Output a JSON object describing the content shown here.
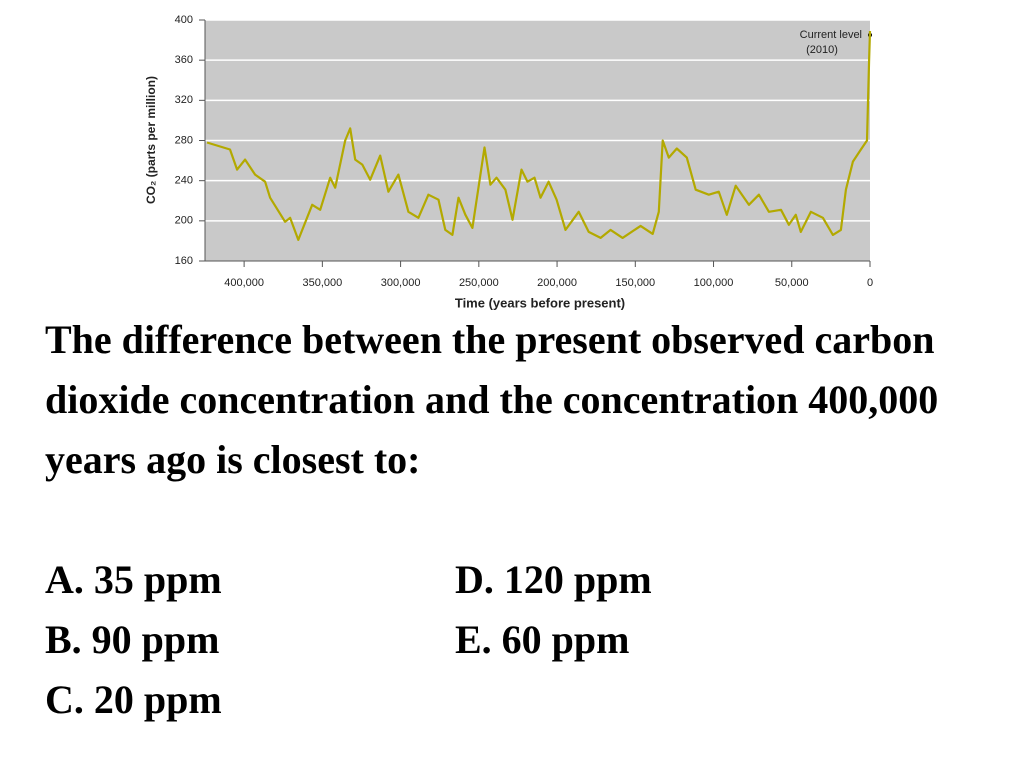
{
  "chart_data": {
    "type": "line",
    "y_label": "CO₂ (parts per million)",
    "x_label": "Time (years before present)",
    "annotation": [
      "Current level",
      "(2010)"
    ],
    "x": [
      423700,
      409000,
      404500,
      399400,
      393000,
      386600,
      383400,
      373800,
      370600,
      365400,
      356500,
      351400,
      345000,
      341800,
      335400,
      332200,
      329000,
      324500,
      319400,
      313000,
      307800,
      301400,
      295000,
      288600,
      282200,
      275800,
      271400,
      266900,
      263000,
      258600,
      254100,
      246400,
      242600,
      238700,
      233000,
      228500,
      222700,
      218900,
      214400,
      210600,
      205400,
      200300,
      194600,
      186200,
      179800,
      172200,
      165800,
      158100,
      146600,
      138900,
      135000,
      132500,
      128600,
      123500,
      117100,
      111400,
      103000,
      96600,
      91500,
      85800,
      77400,
      71000,
      64600,
      56900,
      51800,
      47400,
      44200,
      37800,
      30100,
      23700,
      18600,
      15400,
      10900,
      5800,
      1900,
      600,
      0
    ],
    "series": [
      {
        "color": "#b3a900",
        "values": [
          278,
          271,
          251,
          261,
          246,
          239,
          223,
          199,
          203,
          181,
          216,
          211,
          243,
          233,
          280,
          292,
          261,
          256,
          241,
          265,
          229,
          246,
          209,
          203,
          226,
          221,
          191,
          186,
          223,
          206,
          193,
          273,
          236,
          243,
          231,
          201,
          251,
          239,
          243,
          223,
          239,
          221,
          191,
          209,
          189,
          183,
          191,
          183,
          195,
          187,
          209,
          280,
          263,
          272,
          263,
          231,
          226,
          229,
          206,
          235,
          216,
          226,
          209,
          211,
          196,
          206,
          189,
          209,
          203,
          186,
          191,
          231,
          259,
          271,
          280,
          360,
          389
        ]
      }
    ],
    "xlim": [
      425000,
      0
    ],
    "xticks": [
      {
        "value": 400000,
        "label": "400,000"
      },
      {
        "value": 350000,
        "label": "350,000"
      },
      {
        "value": 300000,
        "label": "300,000"
      },
      {
        "value": 250000,
        "label": "250,000"
      },
      {
        "value": 200000,
        "label": "200,000"
      },
      {
        "value": 150000,
        "label": "150,000"
      },
      {
        "value": 100000,
        "label": "100,000"
      },
      {
        "value": 50000,
        "label": "50,000"
      },
      0
    ],
    "ylim": [
      160,
      400
    ],
    "yticks": [
      160,
      200,
      240,
      280,
      320,
      360,
      400
    ],
    "grid": true
  },
  "question": "The difference between the present observed carbon dioxide concentration and the concentration 400,000 years ago is closest to:",
  "options": [
    "A. 35 ppm",
    "B. 90 ppm",
    "C. 20 ppm",
    "D. 120 ppm",
    "E. 60 ppm"
  ]
}
